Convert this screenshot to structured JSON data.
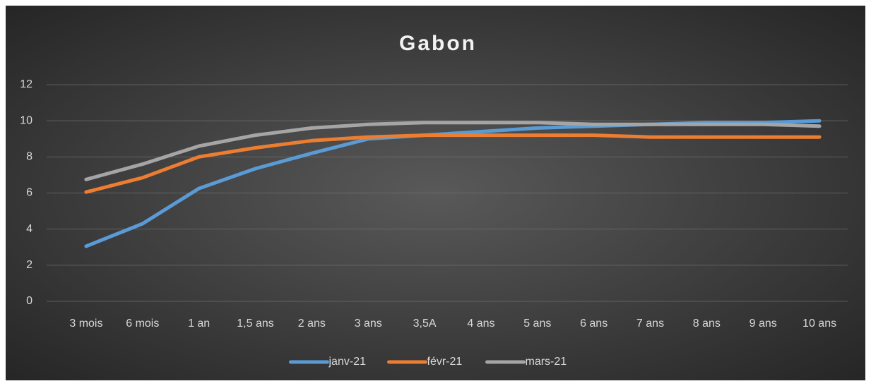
{
  "chart_data": {
    "type": "line",
    "title": "Gabon",
    "categories": [
      "3 mois",
      "6 mois",
      "1 an",
      "1,5 ans",
      "2 ans",
      "3 ans",
      "3,5A",
      "4 ans",
      "5 ans",
      "6 ans",
      "7 ans",
      "8 ans",
      "9 ans",
      "10 ans"
    ],
    "series": [
      {
        "name": "janv-21",
        "color": "#5b9bd5",
        "values": [
          3.05,
          4.3,
          6.25,
          7.35,
          8.2,
          9.0,
          9.2,
          9.4,
          9.6,
          9.7,
          9.8,
          9.9,
          9.9,
          10.0
        ]
      },
      {
        "name": "févr-21",
        "color": "#ed7d31",
        "values": [
          6.05,
          6.85,
          8.0,
          8.5,
          8.9,
          9.1,
          9.2,
          9.2,
          9.2,
          9.2,
          9.1,
          9.1,
          9.1,
          9.1
        ]
      },
      {
        "name": "mars-21",
        "color": "#a5a5a5",
        "values": [
          6.75,
          7.6,
          8.6,
          9.2,
          9.6,
          9.8,
          9.9,
          9.9,
          9.9,
          9.8,
          9.8,
          9.8,
          9.8,
          9.7
        ]
      }
    ],
    "ylim": [
      0,
      12
    ],
    "yticks": [
      0,
      2,
      4,
      6,
      8,
      10,
      12
    ],
    "grid": true,
    "legend": "bottom"
  }
}
